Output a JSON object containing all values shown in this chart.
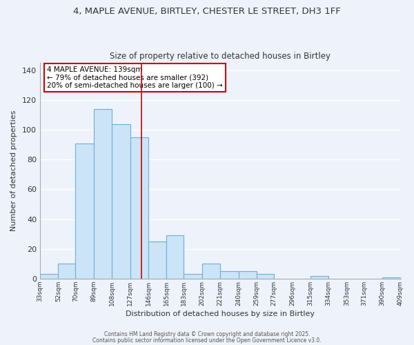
{
  "title": "4, MAPLE AVENUE, BIRTLEY, CHESTER LE STREET, DH3 1FF",
  "subtitle": "Size of property relative to detached houses in Birtley",
  "xlabel": "Distribution of detached houses by size in Birtley",
  "ylabel": "Number of detached properties",
  "bin_edges": [
    33,
    52,
    70,
    89,
    108,
    127,
    146,
    165,
    183,
    202,
    221,
    240,
    259,
    277,
    296,
    315,
    334,
    353,
    371,
    390,
    409
  ],
  "bar_heights": [
    3,
    10,
    91,
    114,
    104,
    95,
    25,
    29,
    3,
    10,
    5,
    5,
    3,
    0,
    0,
    2,
    0,
    0,
    0,
    1
  ],
  "bar_facecolor": "#cce4f7",
  "bar_edgecolor": "#6aaed6",
  "ylim": [
    0,
    145
  ],
  "yticks": [
    0,
    20,
    40,
    60,
    80,
    100,
    120,
    140
  ],
  "red_line_x": 139,
  "annotation_title": "4 MAPLE AVENUE: 139sqm",
  "annotation_line1": "← 79% of detached houses are smaller (392)",
  "annotation_line2": "20% of semi-detached houses are larger (100) →",
  "annotation_box_facecolor": "#ffffff",
  "annotation_box_edgecolor": "#cc0000",
  "background_color": "#eef2fb",
  "grid_color": "#ffffff",
  "footer_line1": "Contains HM Land Registry data © Crown copyright and database right 2025.",
  "footer_line2": "Contains public sector information licensed under the Open Government Licence v3.0."
}
